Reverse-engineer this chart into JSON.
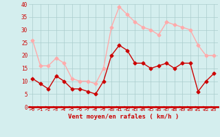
{
  "x": [
    0,
    1,
    2,
    3,
    4,
    5,
    6,
    7,
    8,
    9,
    10,
    11,
    12,
    13,
    14,
    15,
    16,
    17,
    18,
    19,
    20,
    21,
    22,
    23
  ],
  "wind_avg": [
    11,
    9,
    7,
    12,
    10,
    7,
    7,
    6,
    5,
    10,
    20,
    24,
    22,
    17,
    17,
    15,
    16,
    17,
    15,
    17,
    17,
    6,
    10,
    13
  ],
  "wind_gust": [
    26,
    16,
    16,
    19,
    17,
    11,
    10,
    10,
    9,
    15,
    31,
    39,
    36,
    33,
    31,
    30,
    28,
    33,
    32,
    31,
    30,
    24,
    20,
    20
  ],
  "avg_color": "#cc0000",
  "gust_color": "#ffaaaa",
  "bg_color": "#d4eeee",
  "grid_color": "#aacccc",
  "xlabel": "Vent moyen/en rafales ( km/h )",
  "xlabel_color": "#cc0000",
  "ylim": [
    0,
    40
  ],
  "yticks": [
    0,
    5,
    10,
    15,
    20,
    25,
    30,
    35,
    40
  ],
  "marker_size": 2.5,
  "line_width": 1.0
}
